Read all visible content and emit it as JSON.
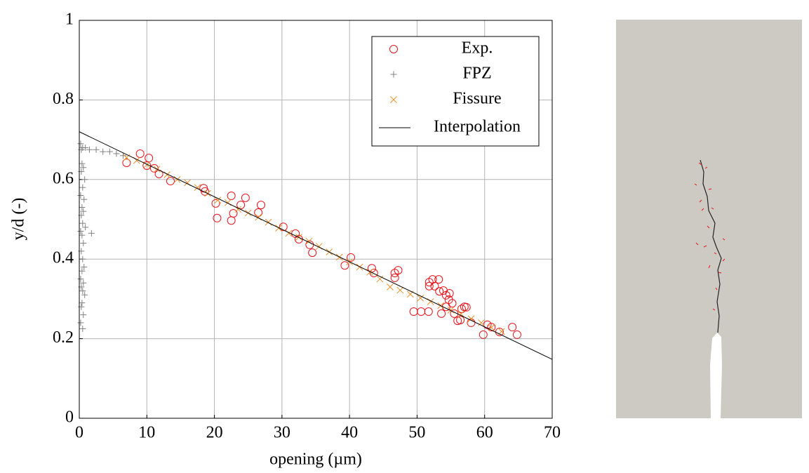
{
  "chart_data": {
    "type": "scatter",
    "xlabel": "opening (µm)",
    "ylabel": "y/d (-)",
    "xlim": [
      0,
      70
    ],
    "ylim": [
      0,
      1
    ],
    "xticks": [
      0,
      10,
      20,
      30,
      40,
      50,
      60,
      70
    ],
    "yticks": [
      0,
      0.2,
      0.4,
      0.6,
      0.8,
      1
    ],
    "grid": true,
    "legend": "upper right",
    "series": [
      {
        "name": "Exp.",
        "color": "#e8141c",
        "marker": "o",
        "x": [
          7.0,
          9.0,
          10.3,
          10.0,
          11.1,
          11.8,
          13.5,
          18.4,
          18.6,
          20.2,
          20.4,
          22.5,
          22.5,
          22.8,
          24.6,
          23.9,
          26.9,
          26.5,
          30.2,
          32.0,
          32.5,
          34.1,
          34.5,
          39.3,
          40.2,
          43.3,
          43.6,
          46.7,
          47.2,
          46.7,
          49.5,
          50.6,
          51.7,
          51.8,
          51.8,
          52.3,
          52.6,
          53.2,
          53.3,
          53.6,
          53.9,
          54.3,
          54.7,
          54.3,
          54.8,
          55.2,
          55.5,
          56.0,
          56.4,
          56.6,
          57.0,
          57.3,
          58.0,
          59.8,
          60.4,
          61.0,
          62.2,
          64.1,
          64.8
        ],
        "values": [
          0.642,
          0.665,
          0.654,
          0.635,
          0.628,
          0.614,
          0.596,
          0.578,
          0.57,
          0.54,
          0.503,
          0.559,
          0.497,
          0.515,
          0.554,
          0.536,
          0.536,
          0.517,
          0.481,
          0.464,
          0.45,
          0.436,
          0.416,
          0.384,
          0.404,
          0.377,
          0.365,
          0.365,
          0.372,
          0.353,
          0.268,
          0.268,
          0.268,
          0.342,
          0.332,
          0.349,
          0.332,
          0.349,
          0.319,
          0.263,
          0.321,
          0.309,
          0.298,
          0.28,
          0.314,
          0.289,
          0.263,
          0.245,
          0.247,
          0.275,
          0.28,
          0.279,
          0.24,
          0.21,
          0.235,
          0.229,
          0.217,
          0.229,
          0.21
        ]
      },
      {
        "name": "FPZ",
        "color": "#808080",
        "marker": "+",
        "x": [
          0.2,
          0.5,
          0.3,
          0.9,
          1.5,
          2.5,
          3.5,
          4.5,
          5.5,
          6.5,
          0.4,
          0.6,
          0.3,
          0.8,
          0.5,
          0.2,
          0.7,
          0.4,
          0.6,
          0.3,
          0.5,
          0.9,
          0.2,
          0.4,
          0.6,
          0.3,
          0.5,
          0.7,
          0.4,
          0.2,
          0.6,
          0.3,
          0.5,
          0.8,
          0.4,
          0.3,
          0.6,
          0.2,
          1.8,
          0.5
        ],
        "values": [
          0.69,
          0.68,
          0.675,
          0.68,
          0.675,
          0.675,
          0.67,
          0.67,
          0.665,
          0.66,
          0.64,
          0.63,
          0.62,
          0.6,
          0.58,
          0.56,
          0.55,
          0.53,
          0.52,
          0.51,
          0.49,
          0.48,
          0.47,
          0.46,
          0.44,
          0.42,
          0.4,
          0.38,
          0.37,
          0.35,
          0.34,
          0.33,
          0.32,
          0.31,
          0.29,
          0.28,
          0.26,
          0.24,
          0.465,
          0.225
        ]
      },
      {
        "name": "Fissure",
        "color": "#e8902a",
        "marker": "x",
        "x": [
          7,
          8.5,
          10,
          11.5,
          13,
          14.5,
          16,
          17.5,
          19,
          20.5,
          22,
          23.5,
          25,
          26.5,
          28,
          29.5,
          31,
          32.5,
          34,
          35.5,
          37,
          38.5,
          40,
          41.5,
          43,
          44.5,
          46,
          47.5,
          49,
          50.5,
          52,
          53.5,
          55,
          56.5,
          58,
          59.5,
          61,
          62.5
        ],
        "values": [
          0.655,
          0.648,
          0.637,
          0.626,
          0.612,
          0.6,
          0.592,
          0.58,
          0.565,
          0.548,
          0.542,
          0.525,
          0.516,
          0.505,
          0.493,
          0.478,
          0.465,
          0.455,
          0.445,
          0.432,
          0.418,
          0.405,
          0.393,
          0.38,
          0.367,
          0.35,
          0.33,
          0.322,
          0.312,
          0.302,
          0.293,
          0.283,
          0.272,
          0.262,
          0.25,
          0.24,
          0.228,
          0.218
        ]
      },
      {
        "name": "Interpolation",
        "color": "#000000",
        "marker": "line",
        "x": [
          0,
          70
        ],
        "values": [
          0.72,
          0.148
        ]
      }
    ]
  }
}
